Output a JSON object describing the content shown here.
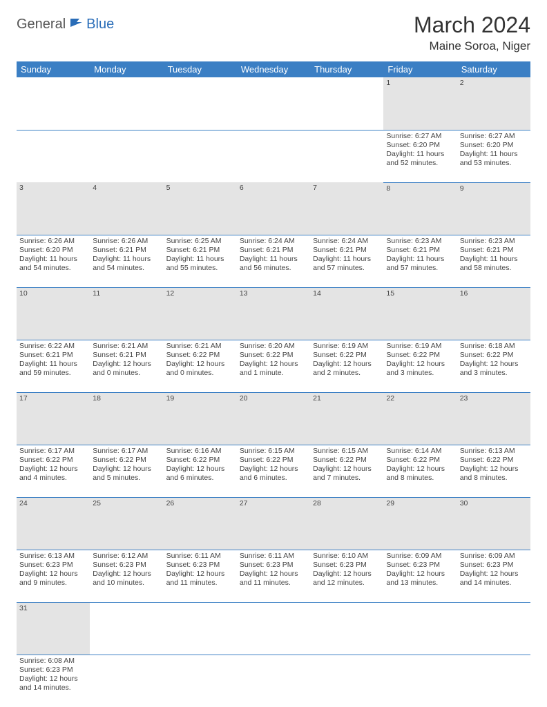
{
  "logo": {
    "part1": "General",
    "part2": "Blue"
  },
  "title": "March 2024",
  "location": "Maine Soroa, Niger",
  "colors": {
    "header_bg": "#3b7fc4",
    "header_text": "#ffffff",
    "daynum_bg": "#e4e4e4",
    "border": "#3b7fc4",
    "logo_accent": "#2a6db8"
  },
  "weekdays": [
    "Sunday",
    "Monday",
    "Tuesday",
    "Wednesday",
    "Thursday",
    "Friday",
    "Saturday"
  ],
  "weeks": [
    {
      "nums": [
        "",
        "",
        "",
        "",
        "",
        "1",
        "2"
      ],
      "cells": [
        null,
        null,
        null,
        null,
        null,
        {
          "sunrise": "Sunrise: 6:27 AM",
          "sunset": "Sunset: 6:20 PM",
          "day1": "Daylight: 11 hours",
          "day2": "and 52 minutes."
        },
        {
          "sunrise": "Sunrise: 6:27 AM",
          "sunset": "Sunset: 6:20 PM",
          "day1": "Daylight: 11 hours",
          "day2": "and 53 minutes."
        }
      ]
    },
    {
      "nums": [
        "3",
        "4",
        "5",
        "6",
        "7",
        "8",
        "9"
      ],
      "cells": [
        {
          "sunrise": "Sunrise: 6:26 AM",
          "sunset": "Sunset: 6:20 PM",
          "day1": "Daylight: 11 hours",
          "day2": "and 54 minutes."
        },
        {
          "sunrise": "Sunrise: 6:26 AM",
          "sunset": "Sunset: 6:21 PM",
          "day1": "Daylight: 11 hours",
          "day2": "and 54 minutes."
        },
        {
          "sunrise": "Sunrise: 6:25 AM",
          "sunset": "Sunset: 6:21 PM",
          "day1": "Daylight: 11 hours",
          "day2": "and 55 minutes."
        },
        {
          "sunrise": "Sunrise: 6:24 AM",
          "sunset": "Sunset: 6:21 PM",
          "day1": "Daylight: 11 hours",
          "day2": "and 56 minutes."
        },
        {
          "sunrise": "Sunrise: 6:24 AM",
          "sunset": "Sunset: 6:21 PM",
          "day1": "Daylight: 11 hours",
          "day2": "and 57 minutes."
        },
        {
          "sunrise": "Sunrise: 6:23 AM",
          "sunset": "Sunset: 6:21 PM",
          "day1": "Daylight: 11 hours",
          "day2": "and 57 minutes."
        },
        {
          "sunrise": "Sunrise: 6:23 AM",
          "sunset": "Sunset: 6:21 PM",
          "day1": "Daylight: 11 hours",
          "day2": "and 58 minutes."
        }
      ]
    },
    {
      "nums": [
        "10",
        "11",
        "12",
        "13",
        "14",
        "15",
        "16"
      ],
      "cells": [
        {
          "sunrise": "Sunrise: 6:22 AM",
          "sunset": "Sunset: 6:21 PM",
          "day1": "Daylight: 11 hours",
          "day2": "and 59 minutes."
        },
        {
          "sunrise": "Sunrise: 6:21 AM",
          "sunset": "Sunset: 6:21 PM",
          "day1": "Daylight: 12 hours",
          "day2": "and 0 minutes."
        },
        {
          "sunrise": "Sunrise: 6:21 AM",
          "sunset": "Sunset: 6:22 PM",
          "day1": "Daylight: 12 hours",
          "day2": "and 0 minutes."
        },
        {
          "sunrise": "Sunrise: 6:20 AM",
          "sunset": "Sunset: 6:22 PM",
          "day1": "Daylight: 12 hours",
          "day2": "and 1 minute."
        },
        {
          "sunrise": "Sunrise: 6:19 AM",
          "sunset": "Sunset: 6:22 PM",
          "day1": "Daylight: 12 hours",
          "day2": "and 2 minutes."
        },
        {
          "sunrise": "Sunrise: 6:19 AM",
          "sunset": "Sunset: 6:22 PM",
          "day1": "Daylight: 12 hours",
          "day2": "and 3 minutes."
        },
        {
          "sunrise": "Sunrise: 6:18 AM",
          "sunset": "Sunset: 6:22 PM",
          "day1": "Daylight: 12 hours",
          "day2": "and 3 minutes."
        }
      ]
    },
    {
      "nums": [
        "17",
        "18",
        "19",
        "20",
        "21",
        "22",
        "23"
      ],
      "cells": [
        {
          "sunrise": "Sunrise: 6:17 AM",
          "sunset": "Sunset: 6:22 PM",
          "day1": "Daylight: 12 hours",
          "day2": "and 4 minutes."
        },
        {
          "sunrise": "Sunrise: 6:17 AM",
          "sunset": "Sunset: 6:22 PM",
          "day1": "Daylight: 12 hours",
          "day2": "and 5 minutes."
        },
        {
          "sunrise": "Sunrise: 6:16 AM",
          "sunset": "Sunset: 6:22 PM",
          "day1": "Daylight: 12 hours",
          "day2": "and 6 minutes."
        },
        {
          "sunrise": "Sunrise: 6:15 AM",
          "sunset": "Sunset: 6:22 PM",
          "day1": "Daylight: 12 hours",
          "day2": "and 6 minutes."
        },
        {
          "sunrise": "Sunrise: 6:15 AM",
          "sunset": "Sunset: 6:22 PM",
          "day1": "Daylight: 12 hours",
          "day2": "and 7 minutes."
        },
        {
          "sunrise": "Sunrise: 6:14 AM",
          "sunset": "Sunset: 6:22 PM",
          "day1": "Daylight: 12 hours",
          "day2": "and 8 minutes."
        },
        {
          "sunrise": "Sunrise: 6:13 AM",
          "sunset": "Sunset: 6:22 PM",
          "day1": "Daylight: 12 hours",
          "day2": "and 8 minutes."
        }
      ]
    },
    {
      "nums": [
        "24",
        "25",
        "26",
        "27",
        "28",
        "29",
        "30"
      ],
      "cells": [
        {
          "sunrise": "Sunrise: 6:13 AM",
          "sunset": "Sunset: 6:23 PM",
          "day1": "Daylight: 12 hours",
          "day2": "and 9 minutes."
        },
        {
          "sunrise": "Sunrise: 6:12 AM",
          "sunset": "Sunset: 6:23 PM",
          "day1": "Daylight: 12 hours",
          "day2": "and 10 minutes."
        },
        {
          "sunrise": "Sunrise: 6:11 AM",
          "sunset": "Sunset: 6:23 PM",
          "day1": "Daylight: 12 hours",
          "day2": "and 11 minutes."
        },
        {
          "sunrise": "Sunrise: 6:11 AM",
          "sunset": "Sunset: 6:23 PM",
          "day1": "Daylight: 12 hours",
          "day2": "and 11 minutes."
        },
        {
          "sunrise": "Sunrise: 6:10 AM",
          "sunset": "Sunset: 6:23 PM",
          "day1": "Daylight: 12 hours",
          "day2": "and 12 minutes."
        },
        {
          "sunrise": "Sunrise: 6:09 AM",
          "sunset": "Sunset: 6:23 PM",
          "day1": "Daylight: 12 hours",
          "day2": "and 13 minutes."
        },
        {
          "sunrise": "Sunrise: 6:09 AM",
          "sunset": "Sunset: 6:23 PM",
          "day1": "Daylight: 12 hours",
          "day2": "and 14 minutes."
        }
      ]
    },
    {
      "nums": [
        "31",
        "",
        "",
        "",
        "",
        "",
        ""
      ],
      "cells": [
        {
          "sunrise": "Sunrise: 6:08 AM",
          "sunset": "Sunset: 6:23 PM",
          "day1": "Daylight: 12 hours",
          "day2": "and 14 minutes."
        },
        null,
        null,
        null,
        null,
        null,
        null
      ]
    }
  ]
}
